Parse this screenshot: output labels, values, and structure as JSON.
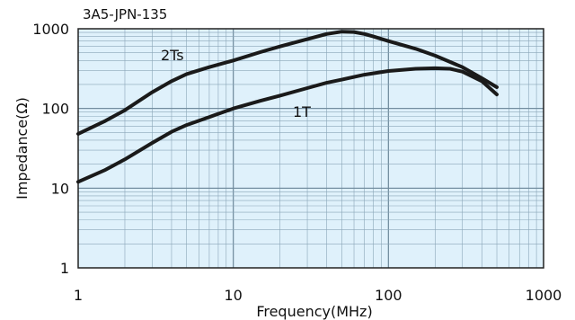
{
  "chart_data": {
    "type": "line",
    "title": "3A5-JPN-135",
    "xlabel": "Frequency(MHz)",
    "ylabel": "Impedance(Ω)",
    "x_scale": "log",
    "y_scale": "log",
    "xlim": [
      1,
      1000
    ],
    "ylim": [
      1,
      1000
    ],
    "x_ticks": [
      "1",
      "10",
      "100",
      "1000"
    ],
    "y_ticks": [
      "1",
      "10",
      "100",
      "1000"
    ],
    "grid": true,
    "background_color": "#dff1fb",
    "grid_color": "#8aa6b8",
    "line_color": "#1a1a1a",
    "series": [
      {
        "name": "2Ts",
        "x": [
          1,
          1.5,
          2,
          3,
          4,
          5,
          7,
          10,
          15,
          20,
          30,
          40,
          50,
          60,
          70,
          80,
          100,
          150,
          200,
          300,
          400,
          500
        ],
        "y": [
          48,
          70,
          95,
          160,
          220,
          270,
          330,
          400,
          510,
          600,
          740,
          860,
          920,
          910,
          860,
          800,
          700,
          560,
          460,
          330,
          240,
          185
        ]
      },
      {
        "name": "1T",
        "x": [
          1,
          1.5,
          2,
          3,
          4,
          5,
          7,
          10,
          15,
          20,
          30,
          40,
          50,
          70,
          100,
          150,
          200,
          250,
          300,
          400,
          500
        ],
        "y": [
          12,
          17,
          23,
          37,
          51,
          62,
          78,
          100,
          125,
          145,
          180,
          210,
          230,
          265,
          295,
          315,
          320,
          315,
          290,
          220,
          150
        ]
      }
    ]
  }
}
